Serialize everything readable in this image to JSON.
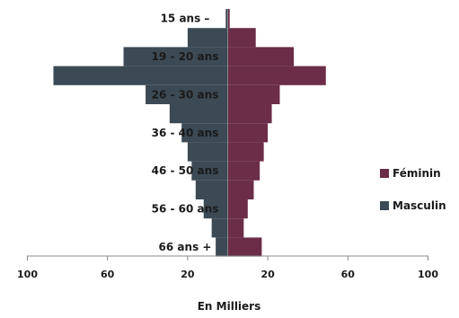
{
  "chart_data": {
    "type": "bar",
    "orientation": "horizontal-pyramid",
    "title": "",
    "xlabel": "En Milliers",
    "ylabel": "",
    "categories": [
      "15 ans –",
      "",
      "19 - 20 ans",
      "",
      "26 - 30 ans",
      "",
      "36 - 40 ans",
      "",
      "46 - 50 ans",
      "",
      "56 - 60 ans",
      "",
      "66 ans +"
    ],
    "series": [
      {
        "name": "Masculin",
        "color": "#3b4a55",
        "side": "left",
        "values": [
          1,
          20,
          52,
          87,
          41,
          29,
          23,
          20,
          18,
          16,
          12,
          8,
          6
        ]
      },
      {
        "name": "Féminin",
        "color": "#6b2d47",
        "side": "right",
        "values": [
          1,
          14,
          33,
          49,
          26,
          22,
          20,
          18,
          16,
          13,
          10,
          8,
          17
        ]
      }
    ],
    "xticks": [
      "100",
      "60",
      "20",
      "20",
      "60",
      "100"
    ],
    "xlim": [
      -100,
      100
    ],
    "grid": false,
    "legend": "right",
    "legend_entries": [
      "Féminin",
      "Masculin"
    ]
  }
}
